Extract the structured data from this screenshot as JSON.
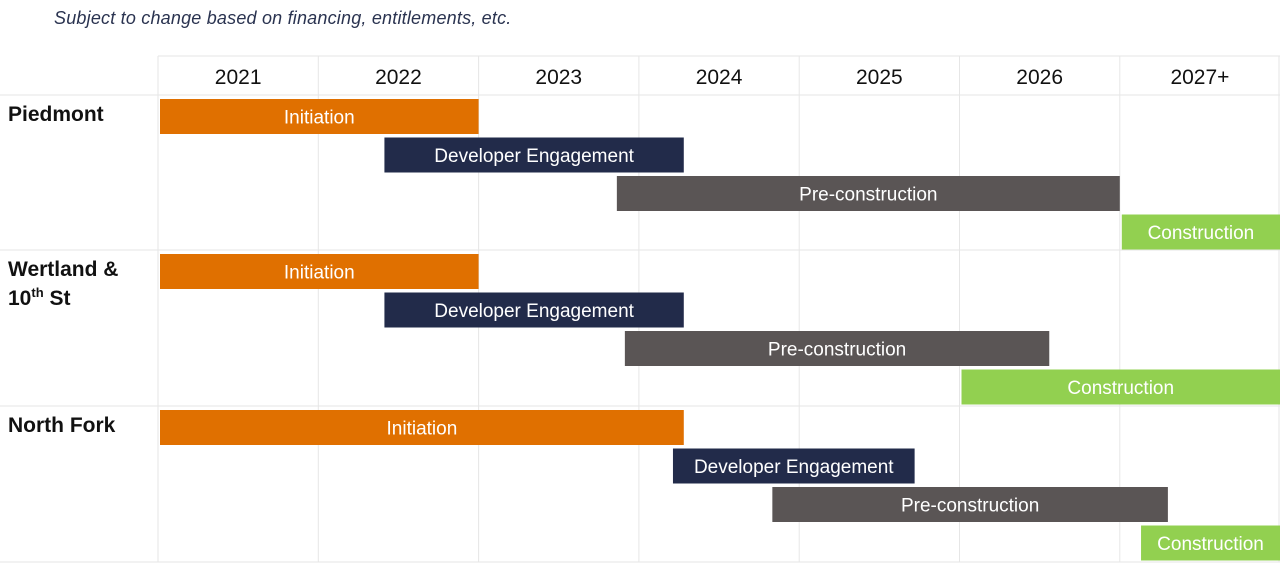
{
  "note": "Subject to change based on financing, entitlements, etc.",
  "chart_data": {
    "type": "gantt",
    "years": [
      "2021",
      "2022",
      "2023",
      "2024",
      "2025",
      "2026",
      "2027+"
    ],
    "colors": {
      "Initiation": "#e07000",
      "Developer Engagement": "#222b4a",
      "Pre-construction": "#5a5555",
      "Construction": "#92d050"
    },
    "projects": [
      {
        "name_lines": [
          "Piedmont"
        ],
        "phases": [
          {
            "label": "Initiation",
            "start": 0.0,
            "end": 2.0
          },
          {
            "label": "Developer Engagement",
            "start": 1.4,
            "end": 3.28
          },
          {
            "label": "Pre-construction",
            "start": 2.85,
            "end": 6.0
          },
          {
            "label": "Construction",
            "start": 6.0,
            "end": 7.0
          }
        ]
      },
      {
        "name_lines": [
          "Wertland &",
          "10th St"
        ],
        "phases": [
          {
            "label": "Initiation",
            "start": 0.0,
            "end": 2.0
          },
          {
            "label": "Developer Engagement",
            "start": 1.4,
            "end": 3.28
          },
          {
            "label": "Pre-construction",
            "start": 2.9,
            "end": 5.56
          },
          {
            "label": "Construction",
            "start": 5.0,
            "end": 7.0
          }
        ]
      },
      {
        "name_lines": [
          "North Fork"
        ],
        "phases": [
          {
            "label": "Initiation",
            "start": 0.0,
            "end": 3.28
          },
          {
            "label": "Developer Engagement",
            "start": 3.2,
            "end": 4.72
          },
          {
            "label": "Pre-construction",
            "start": 3.82,
            "end": 6.3
          },
          {
            "label": "Construction",
            "start": 6.12,
            "end": 7.0
          }
        ]
      }
    ]
  }
}
